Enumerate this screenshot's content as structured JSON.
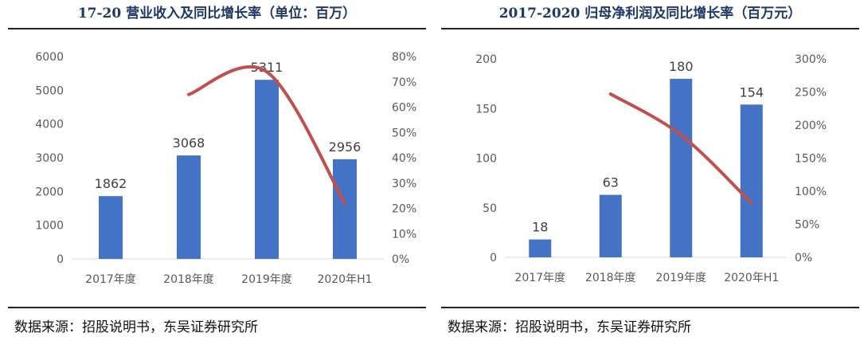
{
  "left": {
    "title": "17-20 营业收入及同比增长率（单位：百万）",
    "source": "数据来源：招股说明书，东吴证券研究所"
  },
  "right": {
    "title": "2017-2020 归母净利润及同比增长率（百万元）",
    "source": "数据来源：招股说明书，东吴证券研究所"
  },
  "colors": {
    "bar": "#4472c4",
    "line": "#c0504d",
    "title": "#1f3864"
  },
  "chart_data": [
    {
      "type": "bar",
      "categories": [
        "2017年度",
        "2018年度",
        "2019年度",
        "2020年H1"
      ],
      "series": [
        {
          "type": "bar",
          "values": [
            1862,
            3068,
            5311,
            2956
          ],
          "data_labels": [
            "1862",
            "3068",
            "5311",
            "2956"
          ]
        },
        {
          "type": "line",
          "axis": "right",
          "values": [
            null,
            65,
            74,
            22
          ]
        }
      ],
      "ylim": [
        0,
        6000
      ],
      "yticks": [
        "0",
        "1000",
        "2000",
        "3000",
        "4000",
        "5000",
        "6000"
      ],
      "y2lim": [
        0,
        80
      ],
      "y2ticks": [
        "0%",
        "10%",
        "20%",
        "30%",
        "40%",
        "50%",
        "60%",
        "70%",
        "80%"
      ]
    },
    {
      "type": "bar",
      "categories": [
        "2017年度",
        "2018年度",
        "2019年度",
        "2020年H1"
      ],
      "series": [
        {
          "type": "bar",
          "values": [
            18,
            63,
            180,
            154
          ],
          "data_labels": [
            "18",
            "63",
            "180",
            "154"
          ]
        },
        {
          "type": "line",
          "axis": "right",
          "values": [
            null,
            247,
            185,
            82
          ]
        }
      ],
      "ylim": [
        0,
        200
      ],
      "yticks": [
        "0",
        "50",
        "100",
        "150",
        "200"
      ],
      "y2lim": [
        0,
        300
      ],
      "y2ticks": [
        "0%",
        "50%",
        "100%",
        "150%",
        "200%",
        "250%",
        "300%"
      ]
    }
  ]
}
